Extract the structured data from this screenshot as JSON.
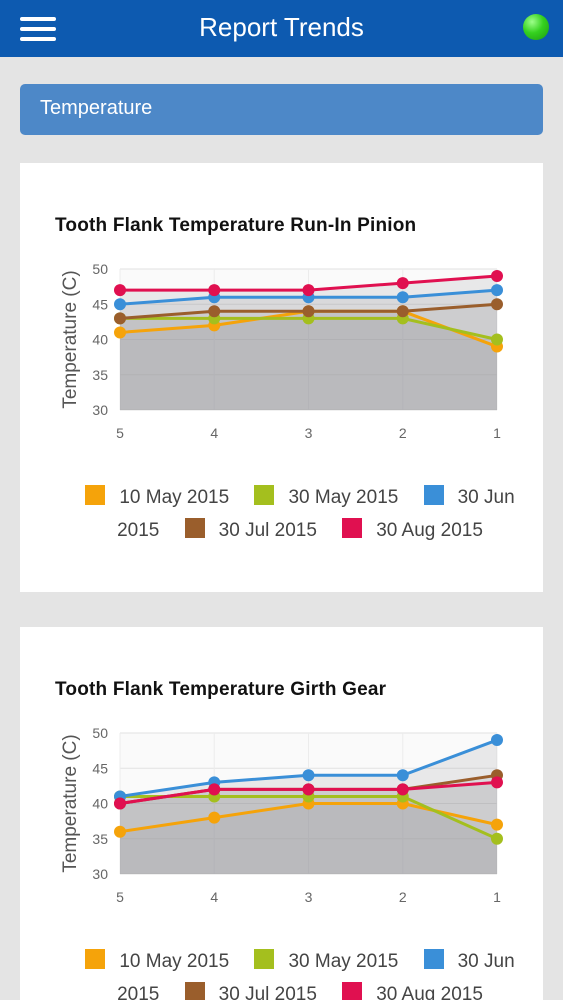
{
  "header": {
    "title": "Report Trends",
    "menu_icon": "hamburger-menu-icon",
    "status_icon": "green-status-dot-icon",
    "status_color": "#35d11f"
  },
  "section": {
    "title": "Temperature"
  },
  "chart_data": [
    {
      "type": "area",
      "title": "Tooth Flank Temperature Run-In Pinion",
      "ylabel": "Temperature (C)",
      "xlabel": "",
      "categories": [
        "5",
        "4",
        "3",
        "2",
        "1"
      ],
      "ylim": [
        30,
        50
      ],
      "yticks": [
        "30",
        "35",
        "40",
        "45",
        "50"
      ],
      "legend": "bottom",
      "series": [
        {
          "name": "10 May 2015",
          "color": "#f5a30a",
          "values": [
            41,
            42,
            44,
            44,
            39
          ]
        },
        {
          "name": "30 May 2015",
          "color": "#a4bf1e",
          "values": [
            43,
            43,
            43,
            43,
            40
          ]
        },
        {
          "name": "30 Jun 2015",
          "color": "#3a8fd8",
          "values": [
            45,
            46,
            46,
            46,
            47
          ]
        },
        {
          "name": "30 Jul 2015",
          "color": "#9a5e2c",
          "values": [
            43,
            44,
            44,
            44,
            45
          ]
        },
        {
          "name": "30 Aug 2015",
          "color": "#e01050",
          "values": [
            47,
            47,
            47,
            48,
            49
          ]
        }
      ]
    },
    {
      "type": "area",
      "title": "Tooth Flank Temperature Girth Gear",
      "ylabel": "Temperature (C)",
      "xlabel": "",
      "categories": [
        "5",
        "4",
        "3",
        "2",
        "1"
      ],
      "ylim": [
        30,
        50
      ],
      "yticks": [
        "30",
        "35",
        "40",
        "45",
        "50"
      ],
      "legend": "bottom",
      "series": [
        {
          "name": "10 May 2015",
          "color": "#f5a30a",
          "values": [
            36,
            38,
            40,
            40,
            37
          ]
        },
        {
          "name": "30 May 2015",
          "color": "#a4bf1e",
          "values": [
            41,
            41,
            41,
            41,
            35
          ]
        },
        {
          "name": "30 Jun 2015",
          "color": "#3a8fd8",
          "values": [
            41,
            43,
            44,
            44,
            49
          ]
        },
        {
          "name": "30 Jul 2015",
          "color": "#9a5e2c",
          "values": [
            40,
            42,
            42,
            42,
            44
          ]
        },
        {
          "name": "30 Aug 2015",
          "color": "#e01050",
          "values": [
            40,
            42,
            42,
            42,
            43
          ]
        }
      ]
    }
  ]
}
